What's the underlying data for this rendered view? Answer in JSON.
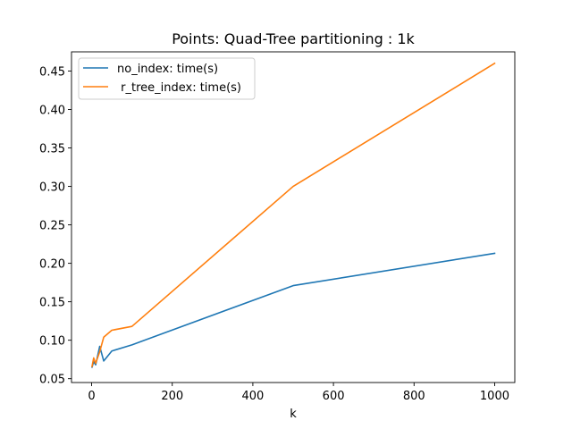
{
  "chart_data": {
    "type": "line",
    "title": "Points: Quad-Tree partitioning : 1k",
    "xlabel": "k",
    "ylabel": "",
    "xlim": [
      -50,
      1050
    ],
    "ylim": [
      0.045,
      0.475
    ],
    "xticks": [
      0,
      200,
      400,
      600,
      800,
      1000
    ],
    "yticks": [
      0.05,
      0.1,
      0.15,
      0.2,
      0.25,
      0.3,
      0.35,
      0.4,
      0.45
    ],
    "grid": false,
    "legend_position": "top-left",
    "series": [
      {
        "name": "no_index: time(s)",
        "color": "#1f77b4",
        "x": [
          1,
          5,
          10,
          20,
          30,
          50,
          100,
          500,
          1000
        ],
        "y": [
          0.065,
          0.072,
          0.068,
          0.092,
          0.073,
          0.086,
          0.094,
          0.171,
          0.213
        ]
      },
      {
        "name": " r_tree_index: time(s)",
        "color": "#ff7f0e",
        "x": [
          1,
          5,
          10,
          20,
          30,
          50,
          100,
          500,
          1000
        ],
        "y": [
          0.066,
          0.077,
          0.07,
          0.085,
          0.104,
          0.113,
          0.118,
          0.3,
          0.46
        ]
      }
    ]
  }
}
